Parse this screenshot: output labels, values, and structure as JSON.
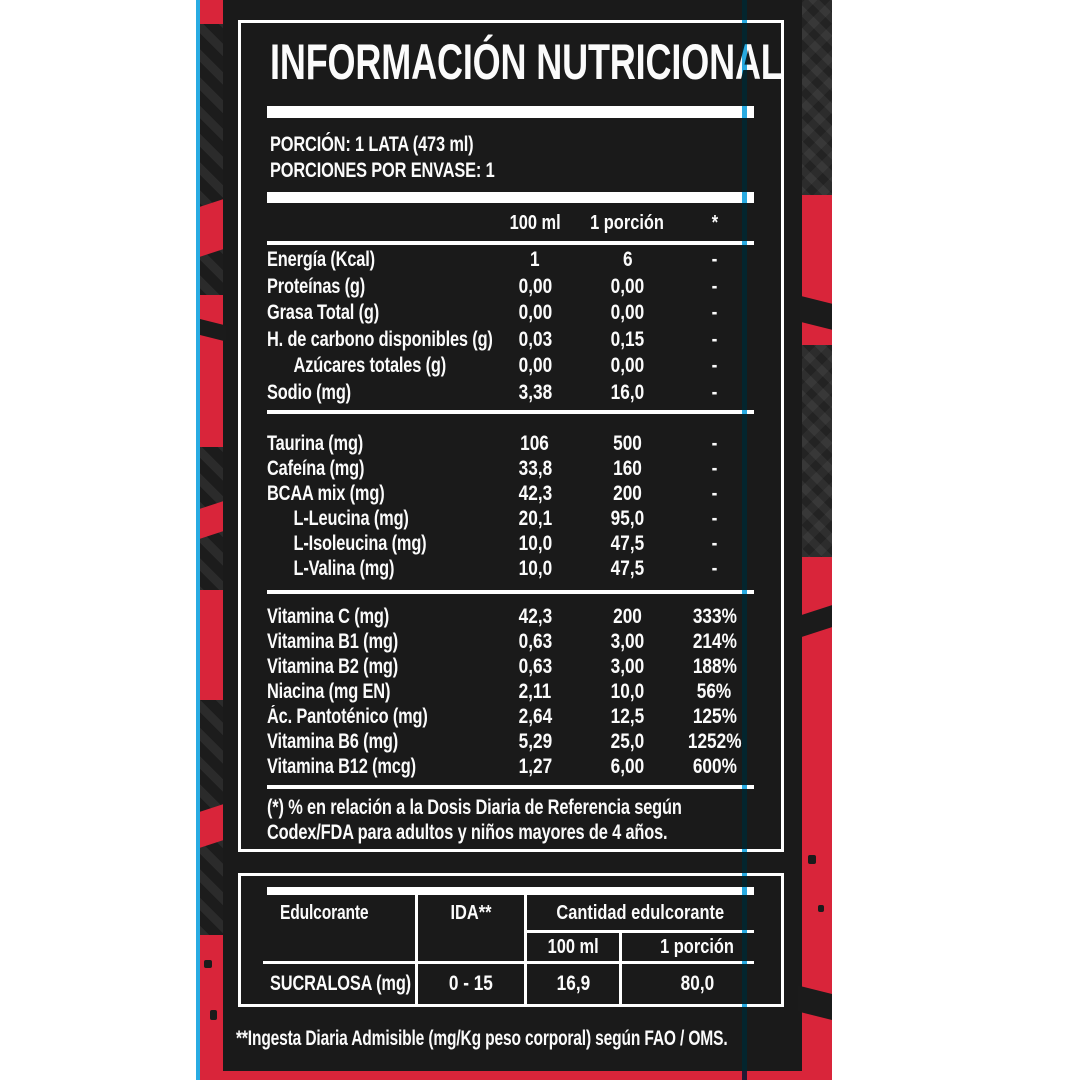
{
  "panel": {
    "title": "INFORMACIÓN NUTRICIONAL",
    "serving_line1": "PORCIÓN: 1 LATA (473 ml)",
    "serving_line2": "PORCIONES POR ENVASE: 1"
  },
  "nutrition_table": {
    "columns": [
      "100 ml",
      "1 porción",
      "*"
    ],
    "sections": [
      {
        "rows": [
          {
            "label": "Energía (Kcal)",
            "indent": false,
            "per_100ml": "1",
            "per_portion": "6",
            "pct": "-"
          },
          {
            "label": "Proteínas (g)",
            "indent": false,
            "per_100ml": "0,00",
            "per_portion": "0,00",
            "pct": "-"
          },
          {
            "label": "Grasa Total (g)",
            "indent": false,
            "per_100ml": "0,00",
            "per_portion": "0,00",
            "pct": "-"
          },
          {
            "label": "H. de carbono disponibles (g)",
            "indent": false,
            "per_100ml": "0,03",
            "per_portion": "0,15",
            "pct": "-"
          },
          {
            "label": "Azúcares totales (g)",
            "indent": true,
            "per_100ml": "0,00",
            "per_portion": "0,00",
            "pct": "-"
          },
          {
            "label": "Sodio (mg)",
            "indent": false,
            "per_100ml": "3,38",
            "per_portion": "16,0",
            "pct": "-"
          }
        ]
      },
      {
        "rows": [
          {
            "label": "Taurina (mg)",
            "indent": false,
            "per_100ml": "106",
            "per_portion": "500",
            "pct": "-"
          },
          {
            "label": "Cafeína (mg)",
            "indent": false,
            "per_100ml": "33,8",
            "per_portion": "160",
            "pct": "-"
          },
          {
            "label": "BCAA mix (mg)",
            "indent": false,
            "per_100ml": "42,3",
            "per_portion": "200",
            "pct": "-"
          },
          {
            "label": "L-Leucina (mg)",
            "indent": true,
            "per_100ml": "20,1",
            "per_portion": "95,0",
            "pct": "-"
          },
          {
            "label": "L-Isoleucina (mg)",
            "indent": true,
            "per_100ml": "10,0",
            "per_portion": "47,5",
            "pct": "-"
          },
          {
            "label": "L-Valina (mg)",
            "indent": true,
            "per_100ml": "10,0",
            "per_portion": "47,5",
            "pct": "-"
          }
        ]
      },
      {
        "rows": [
          {
            "label": "Vitamina C (mg)",
            "indent": false,
            "per_100ml": "42,3",
            "per_portion": "200",
            "pct": "333%"
          },
          {
            "label": "Vitamina B1 (mg)",
            "indent": false,
            "per_100ml": "0,63",
            "per_portion": "3,00",
            "pct": "214%"
          },
          {
            "label": "Vitamina B2 (mg)",
            "indent": false,
            "per_100ml": "0,63",
            "per_portion": "3,00",
            "pct": "188%"
          },
          {
            "label": "Niacina (mg EN)",
            "indent": false,
            "per_100ml": "2,11",
            "per_portion": "10,0",
            "pct": "56%"
          },
          {
            "label": "Ác. Pantoténico (mg)",
            "indent": false,
            "per_100ml": "2,64",
            "per_portion": "12,5",
            "pct": "125%"
          },
          {
            "label": "Vitamina B6 (mg)",
            "indent": false,
            "per_100ml": "5,29",
            "per_portion": "25,0",
            "pct": "1252%"
          },
          {
            "label": "Vitamina B12 (mcg)",
            "indent": false,
            "per_100ml": "1,27",
            "per_portion": "6,00",
            "pct": "600%"
          }
        ]
      }
    ]
  },
  "footnote": {
    "line1": "(*) % en relación a la Dosis Diaria de Referencia según",
    "line2": "Codex/FDA para adultos y niños mayores de 4 años."
  },
  "sweetener_table": {
    "header_sweetener": "Edulcorante",
    "header_ida": "IDA**",
    "header_amount": "Cantidad edulcorante",
    "header_100ml": "100 ml",
    "header_portion": "1 porción",
    "row_name": "SUCRALOSA (mg)",
    "row_ida": "0 - 15",
    "row_100ml": "16,9",
    "row_portion": "80,0"
  },
  "bottom_note": "**Ingesta Diaria Admisible (mg/Kg peso corporal) según FAO / OMS.",
  "colors": {
    "red": "#D9253A",
    "panel_black": "#1A1A1A",
    "cyan": "#29ABE2",
    "teal": "#0E3634",
    "text_white": "#FBFBFB",
    "page_bg": "#FFFFFF"
  }
}
